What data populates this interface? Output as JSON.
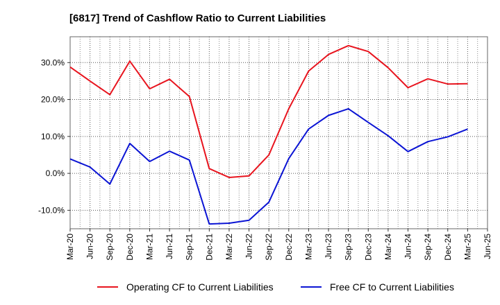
{
  "chart_data": {
    "type": "line",
    "title": "[6817]  Trend of Cashflow Ratio to Current Liabilities",
    "xlabel": "",
    "ylabel": "",
    "x": [
      "Mar-20",
      "Jun-20",
      "Sep-20",
      "Dec-20",
      "Mar-21",
      "Jun-21",
      "Sep-21",
      "Dec-21",
      "Mar-22",
      "Jun-22",
      "Sep-22",
      "Dec-22",
      "Mar-23",
      "Jun-23",
      "Sep-23",
      "Dec-23",
      "Mar-24",
      "Jun-24",
      "Sep-24",
      "Dec-24",
      "Mar-25",
      "Jun-25"
    ],
    "ylim": [
      -15,
      37
    ],
    "yticks": [
      -10,
      0,
      10,
      20,
      30
    ],
    "ytick_labels": [
      "-10.0%",
      "0.0%",
      "10.0%",
      "20.0%",
      "30.0%"
    ],
    "grid": true,
    "legend_position": "bottom",
    "series": [
      {
        "name": "Operating CF to Current Liabilities",
        "color": "#e8141e",
        "values": [
          28.8,
          25.0,
          21.3,
          30.4,
          22.9,
          25.5,
          20.8,
          1.3,
          -1.1,
          -0.7,
          5.0,
          17.5,
          27.7,
          32.2,
          34.6,
          33.0,
          28.6,
          23.2,
          25.6,
          24.2,
          24.3,
          null
        ]
      },
      {
        "name": "Free CF to Current Liabilities",
        "color": "#0b14d4",
        "values": [
          3.9,
          1.7,
          -2.9,
          8.1,
          3.2,
          6.0,
          3.6,
          -13.7,
          -13.5,
          -12.7,
          -7.8,
          4.0,
          12.0,
          15.7,
          17.5,
          13.8,
          10.2,
          5.9,
          8.6,
          9.9,
          12.0,
          null
        ]
      }
    ]
  }
}
